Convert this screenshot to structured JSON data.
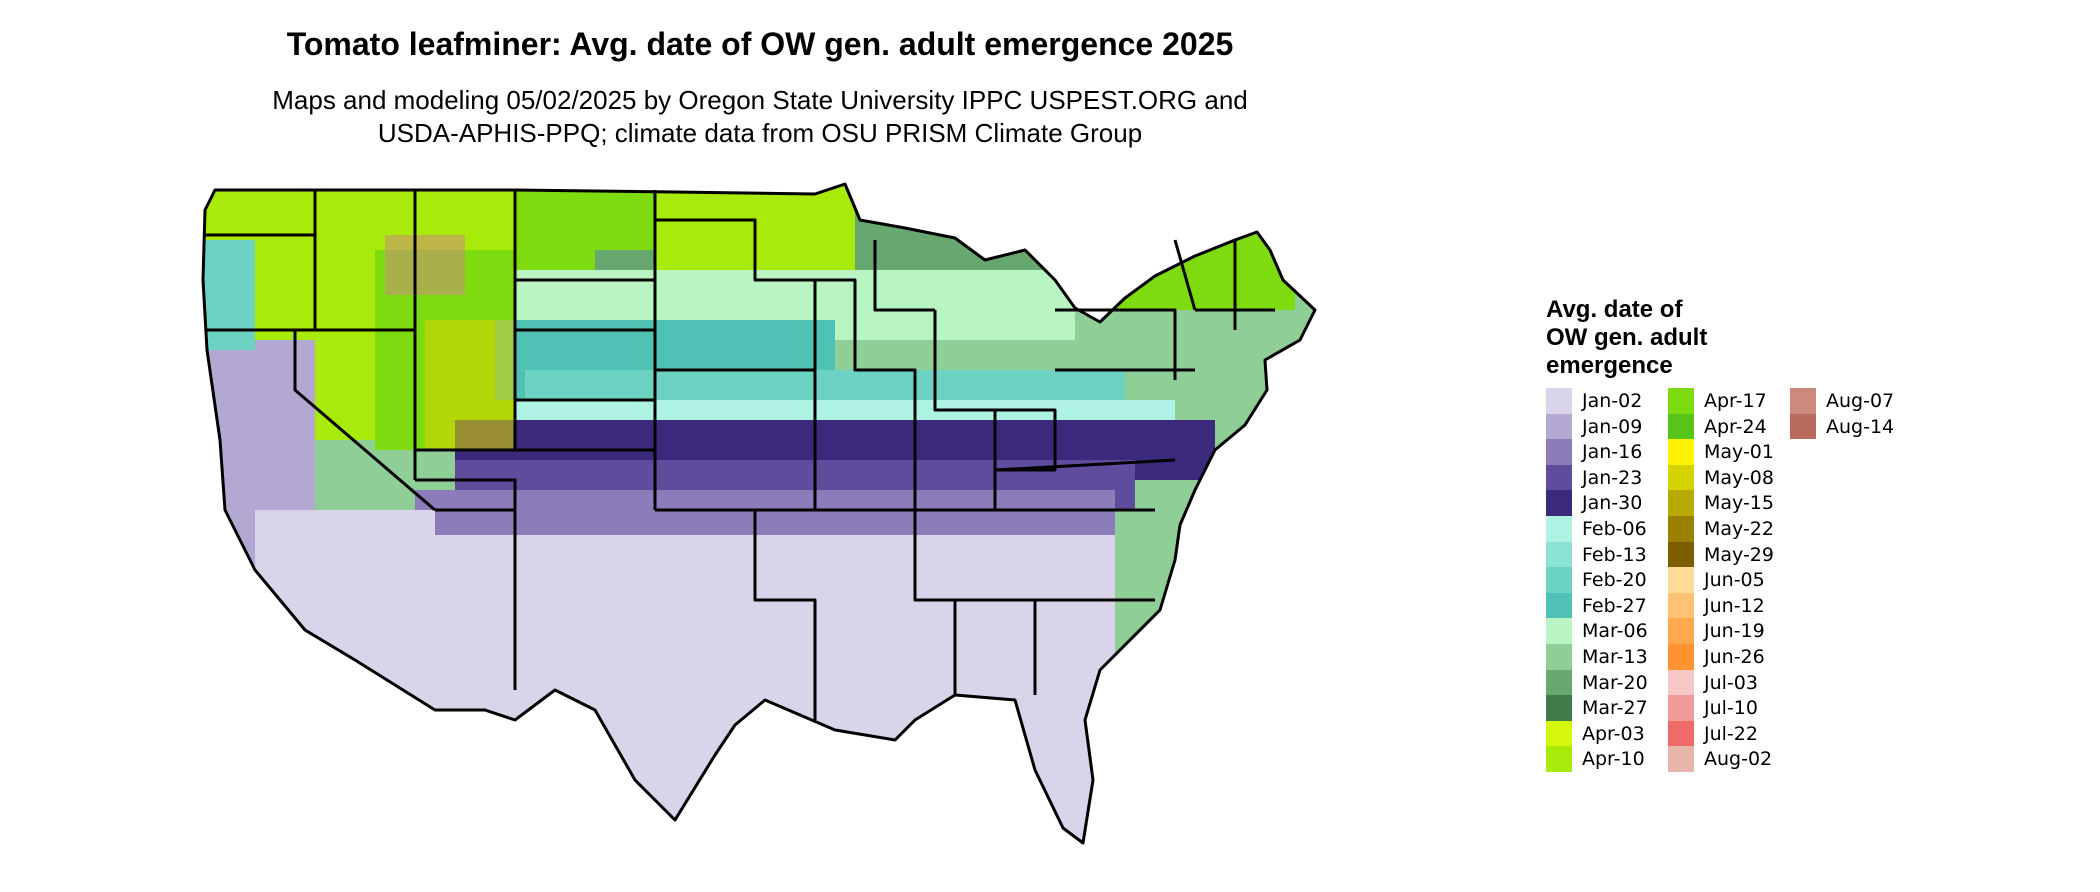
{
  "title": "Tomato leafminer: Avg. date of OW gen. adult emergence 2025",
  "subtitle_lines": [
    "Maps and modeling 05/02/2025 by Oregon State University IPPC USPEST.ORG and",
    "USDA-APHIS-PPQ; climate data from OSU PRISM Climate Group"
  ],
  "legend": {
    "title_lines": [
      "Avg. date of",
      "OW gen. adult",
      "emergence"
    ],
    "items": [
      {
        "label": "Jan-02",
        "color": "#d9d4ea"
      },
      {
        "label": "Jan-09",
        "color": "#b3a8d2"
      },
      {
        "label": "Jan-16",
        "color": "#8c7cba"
      },
      {
        "label": "Jan-23",
        "color": "#5f4c9c"
      },
      {
        "label": "Jan-30",
        "color": "#3b2a7c"
      },
      {
        "label": "Feb-06",
        "color": "#aef2e4"
      },
      {
        "label": "Feb-13",
        "color": "#8ae3d2"
      },
      {
        "label": "Feb-20",
        "color": "#6cd3c3"
      },
      {
        "label": "Feb-27",
        "color": "#4fc2b3"
      },
      {
        "label": "Mar-06",
        "color": "#b8f5c2"
      },
      {
        "label": "Mar-13",
        "color": "#8fce96"
      },
      {
        "label": "Mar-20",
        "color": "#66a870"
      },
      {
        "label": "Mar-27",
        "color": "#3f7a4a"
      },
      {
        "label": "Apr-03",
        "color": "#d4f70a"
      },
      {
        "label": "Apr-10",
        "color": "#a8ea0a"
      },
      {
        "label": "Apr-17",
        "color": "#7edb10"
      },
      {
        "label": "Apr-24",
        "color": "#56c418"
      },
      {
        "label": "May-01",
        "color": "#fff200"
      },
      {
        "label": "May-08",
        "color": "#d6d400"
      },
      {
        "label": "May-15",
        "color": "#b8aa00"
      },
      {
        "label": "May-22",
        "color": "#9a8200"
      },
      {
        "label": "May-29",
        "color": "#7a5e00"
      },
      {
        "label": "Jun-05",
        "color": "#ffdb99"
      },
      {
        "label": "Jun-12",
        "color": "#ffc274"
      },
      {
        "label": "Jun-19",
        "color": "#ffa94e"
      },
      {
        "label": "Jun-26",
        "color": "#ff9430"
      },
      {
        "label": "Jul-03",
        "color": "#f7c6c6"
      },
      {
        "label": "Jul-10",
        "color": "#f29a9a"
      },
      {
        "label": "Jul-22",
        "color": "#f06a6a"
      },
      {
        "label": "Aug-02",
        "color": "#e6b6aa"
      },
      {
        "label": "Aug-07",
        "color": "#cc8a7c"
      },
      {
        "label": "Aug-14",
        "color": "#b86a5c"
      }
    ]
  }
}
